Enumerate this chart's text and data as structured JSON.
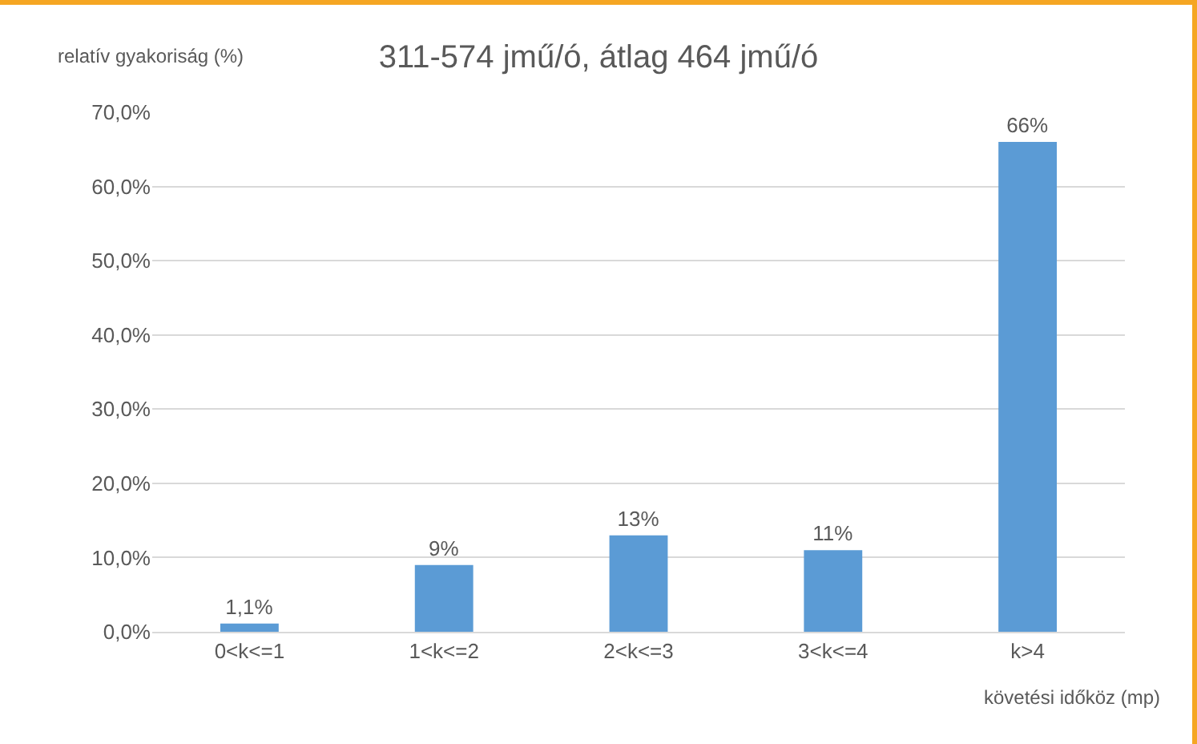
{
  "chart_data": {
    "type": "bar",
    "title": "311-574 jmű/ó, átlag 464 jmű/ó",
    "xlabel": "követési időköz (mp)",
    "ylabel": "relatív gyakoriság (%)",
    "categories": [
      "0<k<=1",
      "1<k<=2",
      "2<k<=3",
      "3<k<=4",
      "k>4"
    ],
    "values": [
      1.1,
      9,
      13,
      11,
      66
    ],
    "value_labels": [
      "1,1%",
      "9%",
      "13%",
      "11%",
      "66%"
    ],
    "color": "#5b9bd5",
    "ylim": [
      0,
      70
    ],
    "yticks": [
      {
        "value": 0,
        "label": "0,0%"
      },
      {
        "value": 10,
        "label": "10,0%"
      },
      {
        "value": 20,
        "label": "20,0%"
      },
      {
        "value": 30,
        "label": "30,0%"
      },
      {
        "value": 40,
        "label": "40,0%"
      },
      {
        "value": 50,
        "label": "50,0%"
      },
      {
        "value": 60,
        "label": "60,0%"
      },
      {
        "value": 70,
        "label": "70,0%"
      }
    ],
    "grid": "y"
  }
}
